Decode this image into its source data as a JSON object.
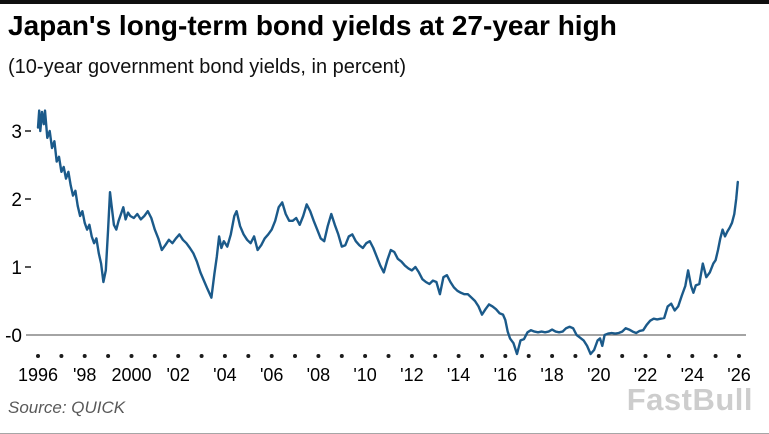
{
  "page": {
    "title": "Japan's long-term bond yields at 27-year high",
    "subtitle": "(10-year government bond yields, in percent)",
    "source": "Source: QUICK",
    "watermark": "FastBull"
  },
  "colors": {
    "line": "#1b5a8a",
    "axis": "#1c1c1c",
    "zero_line": "#6e6e6e",
    "text": "#000000",
    "source_text": "#595959",
    "watermark": "#cbcbcb",
    "top_bar": "#101010",
    "bottom_rule": "#a6a6a6"
  },
  "chart_data": {
    "type": "line",
    "title": "Japan's long-term bond yields at 27-year high",
    "subtitle": "(10-year government bond yields, in percent)",
    "xlabel": "",
    "ylabel": "percent",
    "xlim": [
      1996,
      2026
    ],
    "ylim": [
      -0.5,
      3.45
    ],
    "grid": false,
    "zero_line": true,
    "legend": "none",
    "y_ticks": [
      {
        "value": 3,
        "label": "3"
      },
      {
        "value": 2,
        "label": "2"
      },
      {
        "value": 1,
        "label": "1"
      },
      {
        "value": 0,
        "label": "-0"
      }
    ],
    "x_ticks": [
      {
        "year": 1996,
        "label": "1996"
      },
      {
        "year": 1998,
        "label": "'98"
      },
      {
        "year": 2000,
        "label": "2000"
      },
      {
        "year": 2002,
        "label": "'02"
      },
      {
        "year": 2004,
        "label": "'04"
      },
      {
        "year": 2006,
        "label": "'06"
      },
      {
        "year": 2008,
        "label": "'08"
      },
      {
        "year": 2010,
        "label": "'10"
      },
      {
        "year": 2012,
        "label": "'12"
      },
      {
        "year": 2014,
        "label": "'14"
      },
      {
        "year": 2016,
        "label": "'16"
      },
      {
        "year": 2018,
        "label": "'18"
      },
      {
        "year": 2020,
        "label": "'20"
      },
      {
        "year": 2022,
        "label": "'22"
      },
      {
        "year": 2024,
        "label": "'24"
      },
      {
        "year": 2026,
        "label": "'26"
      }
    ],
    "axis_dot_year_step": 1,
    "series": [
      {
        "name": "10-year government bond yield",
        "points": [
          [
            1996.0,
            3.05
          ],
          [
            1996.05,
            3.3
          ],
          [
            1996.1,
            3.0
          ],
          [
            1996.17,
            3.28
          ],
          [
            1996.25,
            3.1
          ],
          [
            1996.3,
            3.3
          ],
          [
            1996.4,
            2.9
          ],
          [
            1996.5,
            3.0
          ],
          [
            1996.6,
            2.75
          ],
          [
            1996.7,
            2.85
          ],
          [
            1996.8,
            2.55
          ],
          [
            1996.9,
            2.62
          ],
          [
            1997.0,
            2.4
          ],
          [
            1997.1,
            2.47
          ],
          [
            1997.2,
            2.3
          ],
          [
            1997.3,
            2.4
          ],
          [
            1997.4,
            2.2
          ],
          [
            1997.5,
            2.05
          ],
          [
            1997.6,
            2.12
          ],
          [
            1997.7,
            1.9
          ],
          [
            1997.8,
            1.75
          ],
          [
            1997.9,
            1.82
          ],
          [
            1998.0,
            1.65
          ],
          [
            1998.1,
            1.55
          ],
          [
            1998.2,
            1.62
          ],
          [
            1998.3,
            1.45
          ],
          [
            1998.4,
            1.35
          ],
          [
            1998.5,
            1.42
          ],
          [
            1998.6,
            1.2
          ],
          [
            1998.7,
            1.05
          ],
          [
            1998.8,
            0.78
          ],
          [
            1998.9,
            0.95
          ],
          [
            1999.0,
            1.55
          ],
          [
            1999.08,
            2.1
          ],
          [
            1999.15,
            1.9
          ],
          [
            1999.25,
            1.62
          ],
          [
            1999.35,
            1.55
          ],
          [
            1999.45,
            1.68
          ],
          [
            1999.55,
            1.78
          ],
          [
            1999.65,
            1.88
          ],
          [
            1999.75,
            1.7
          ],
          [
            1999.85,
            1.8
          ],
          [
            1999.95,
            1.75
          ],
          [
            2000.1,
            1.72
          ],
          [
            2000.25,
            1.78
          ],
          [
            2000.4,
            1.7
          ],
          [
            2000.55,
            1.75
          ],
          [
            2000.7,
            1.82
          ],
          [
            2000.85,
            1.72
          ],
          [
            2001.0,
            1.55
          ],
          [
            2001.15,
            1.42
          ],
          [
            2001.3,
            1.25
          ],
          [
            2001.45,
            1.32
          ],
          [
            2001.6,
            1.4
          ],
          [
            2001.75,
            1.35
          ],
          [
            2001.9,
            1.42
          ],
          [
            2002.05,
            1.48
          ],
          [
            2002.2,
            1.4
          ],
          [
            2002.35,
            1.35
          ],
          [
            2002.5,
            1.28
          ],
          [
            2002.65,
            1.2
          ],
          [
            2002.8,
            1.08
          ],
          [
            2002.95,
            0.92
          ],
          [
            2003.1,
            0.8
          ],
          [
            2003.25,
            0.68
          ],
          [
            2003.42,
            0.55
          ],
          [
            2003.55,
            0.9
          ],
          [
            2003.65,
            1.15
          ],
          [
            2003.75,
            1.45
          ],
          [
            2003.85,
            1.28
          ],
          [
            2003.95,
            1.38
          ],
          [
            2004.1,
            1.3
          ],
          [
            2004.25,
            1.48
          ],
          [
            2004.4,
            1.75
          ],
          [
            2004.5,
            1.82
          ],
          [
            2004.65,
            1.6
          ],
          [
            2004.8,
            1.48
          ],
          [
            2004.95,
            1.4
          ],
          [
            2005.1,
            1.35
          ],
          [
            2005.25,
            1.45
          ],
          [
            2005.4,
            1.25
          ],
          [
            2005.55,
            1.32
          ],
          [
            2005.7,
            1.42
          ],
          [
            2005.85,
            1.48
          ],
          [
            2006.0,
            1.55
          ],
          [
            2006.15,
            1.68
          ],
          [
            2006.3,
            1.88
          ],
          [
            2006.45,
            1.95
          ],
          [
            2006.6,
            1.78
          ],
          [
            2006.75,
            1.68
          ],
          [
            2006.9,
            1.68
          ],
          [
            2007.05,
            1.72
          ],
          [
            2007.2,
            1.62
          ],
          [
            2007.35,
            1.75
          ],
          [
            2007.5,
            1.92
          ],
          [
            2007.65,
            1.82
          ],
          [
            2007.8,
            1.68
          ],
          [
            2007.95,
            1.55
          ],
          [
            2008.1,
            1.42
          ],
          [
            2008.25,
            1.38
          ],
          [
            2008.4,
            1.6
          ],
          [
            2008.55,
            1.78
          ],
          [
            2008.7,
            1.62
          ],
          [
            2008.85,
            1.48
          ],
          [
            2009.0,
            1.3
          ],
          [
            2009.15,
            1.32
          ],
          [
            2009.3,
            1.45
          ],
          [
            2009.45,
            1.48
          ],
          [
            2009.6,
            1.38
          ],
          [
            2009.75,
            1.32
          ],
          [
            2009.9,
            1.28
          ],
          [
            2010.05,
            1.35
          ],
          [
            2010.2,
            1.38
          ],
          [
            2010.35,
            1.28
          ],
          [
            2010.5,
            1.15
          ],
          [
            2010.65,
            1.02
          ],
          [
            2010.8,
            0.92
          ],
          [
            2010.95,
            1.1
          ],
          [
            2011.1,
            1.25
          ],
          [
            2011.25,
            1.22
          ],
          [
            2011.4,
            1.12
          ],
          [
            2011.55,
            1.08
          ],
          [
            2011.7,
            1.02
          ],
          [
            2011.85,
            0.98
          ],
          [
            2012.0,
            0.95
          ],
          [
            2012.15,
            1.0
          ],
          [
            2012.3,
            0.92
          ],
          [
            2012.45,
            0.82
          ],
          [
            2012.6,
            0.78
          ],
          [
            2012.75,
            0.75
          ],
          [
            2012.9,
            0.8
          ],
          [
            2013.05,
            0.78
          ],
          [
            2013.2,
            0.6
          ],
          [
            2013.35,
            0.85
          ],
          [
            2013.5,
            0.88
          ],
          [
            2013.65,
            0.78
          ],
          [
            2013.8,
            0.7
          ],
          [
            2013.95,
            0.65
          ],
          [
            2014.1,
            0.62
          ],
          [
            2014.25,
            0.6
          ],
          [
            2014.4,
            0.6
          ],
          [
            2014.55,
            0.55
          ],
          [
            2014.7,
            0.5
          ],
          [
            2014.85,
            0.42
          ],
          [
            2015.0,
            0.3
          ],
          [
            2015.15,
            0.38
          ],
          [
            2015.3,
            0.45
          ],
          [
            2015.45,
            0.42
          ],
          [
            2015.6,
            0.38
          ],
          [
            2015.75,
            0.32
          ],
          [
            2015.9,
            0.3
          ],
          [
            2016.0,
            0.22
          ],
          [
            2016.1,
            0.05
          ],
          [
            2016.2,
            -0.05
          ],
          [
            2016.35,
            -0.12
          ],
          [
            2016.5,
            -0.28
          ],
          [
            2016.65,
            -0.08
          ],
          [
            2016.8,
            -0.06
          ],
          [
            2016.95,
            0.04
          ],
          [
            2017.1,
            0.07
          ],
          [
            2017.25,
            0.05
          ],
          [
            2017.4,
            0.04
          ],
          [
            2017.55,
            0.05
          ],
          [
            2017.7,
            0.04
          ],
          [
            2017.85,
            0.05
          ],
          [
            2018.0,
            0.08
          ],
          [
            2018.15,
            0.05
          ],
          [
            2018.3,
            0.04
          ],
          [
            2018.45,
            0.05
          ],
          [
            2018.6,
            0.1
          ],
          [
            2018.75,
            0.12
          ],
          [
            2018.9,
            0.1
          ],
          [
            2019.05,
            0.0
          ],
          [
            2019.2,
            -0.04
          ],
          [
            2019.35,
            -0.08
          ],
          [
            2019.5,
            -0.16
          ],
          [
            2019.65,
            -0.28
          ],
          [
            2019.8,
            -0.22
          ],
          [
            2019.95,
            -0.08
          ],
          [
            2020.05,
            -0.05
          ],
          [
            2020.15,
            -0.16
          ],
          [
            2020.25,
            0.0
          ],
          [
            2020.4,
            0.02
          ],
          [
            2020.55,
            0.03
          ],
          [
            2020.7,
            0.02
          ],
          [
            2020.85,
            0.03
          ],
          [
            2021.0,
            0.05
          ],
          [
            2021.15,
            0.1
          ],
          [
            2021.3,
            0.08
          ],
          [
            2021.45,
            0.05
          ],
          [
            2021.6,
            0.03
          ],
          [
            2021.75,
            0.06
          ],
          [
            2021.9,
            0.07
          ],
          [
            2022.05,
            0.15
          ],
          [
            2022.2,
            0.21
          ],
          [
            2022.35,
            0.24
          ],
          [
            2022.5,
            0.23
          ],
          [
            2022.65,
            0.24
          ],
          [
            2022.8,
            0.25
          ],
          [
            2022.95,
            0.42
          ],
          [
            2023.1,
            0.46
          ],
          [
            2023.25,
            0.36
          ],
          [
            2023.4,
            0.42
          ],
          [
            2023.55,
            0.58
          ],
          [
            2023.7,
            0.72
          ],
          [
            2023.82,
            0.95
          ],
          [
            2023.95,
            0.72
          ],
          [
            2024.05,
            0.62
          ],
          [
            2024.15,
            0.73
          ],
          [
            2024.3,
            0.75
          ],
          [
            2024.45,
            1.05
          ],
          [
            2024.6,
            0.85
          ],
          [
            2024.75,
            0.92
          ],
          [
            2024.9,
            1.05
          ],
          [
            2025.0,
            1.1
          ],
          [
            2025.1,
            1.25
          ],
          [
            2025.2,
            1.42
          ],
          [
            2025.3,
            1.55
          ],
          [
            2025.4,
            1.45
          ],
          [
            2025.5,
            1.52
          ],
          [
            2025.6,
            1.58
          ],
          [
            2025.7,
            1.65
          ],
          [
            2025.8,
            1.78
          ],
          [
            2025.88,
            2.0
          ],
          [
            2025.95,
            2.25
          ]
        ]
      }
    ]
  }
}
